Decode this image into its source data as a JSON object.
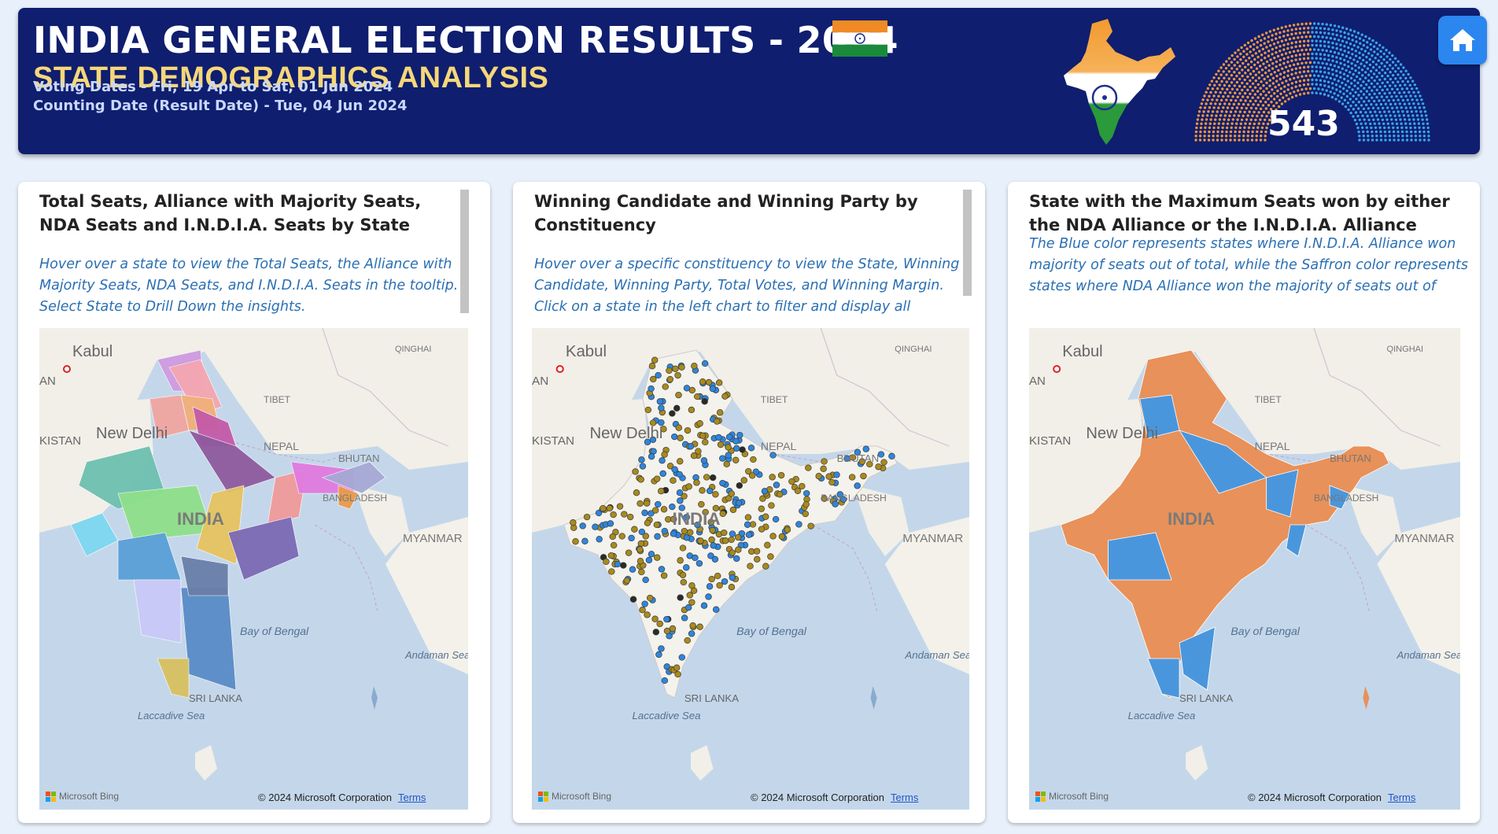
{
  "header": {
    "title": "INDIA GENERAL ELECTION RESULTS - 2024",
    "subtitle": "STATE DEMOGRAPHICS ANALYSIS",
    "voting_dates": "Voting Dates - Fri, 19 Apr to Sat, 01 Jun 2024",
    "counting_date": "Counting Date (Result Date) - Tue, 04 Jun 2024",
    "total_seats": "543",
    "home_icon": "home-icon"
  },
  "colors": {
    "header_bg": "#0f1e6e",
    "subtitle": "#f6d77a",
    "nda_saffron": "#e8915a",
    "india_blue": "#4a96dd",
    "desc_text": "#2a6fb3"
  },
  "cards": [
    {
      "title": "Total Seats, Alliance with Majority Seats, NDA Seats and I.N.D.I.A. Seats by State",
      "description": "Hover over a state to view the Total Seats, the Alliance with Majority Seats, NDA Seats, and I.N.D.I.A. Seats in the tooltip. Select State to Drill Down the insights."
    },
    {
      "title": "Winning Candidate and Winning Party by Constituency",
      "description": "Hover over a specific constituency to view the State, Winning Candidate, Winning Party, Total Votes, and Winning Margin. Click on a state in the left chart to filter and display all constituency"
    },
    {
      "title": "State with the Maximum Seats won by either the NDA Alliance or the I.N.D.I.A. Alliance",
      "description": "The Blue color represents states where I.N.D.I.A. Alliance won majority of seats out of total, while the Saffron color represents states where NDA Alliance won the majority of seats out of total."
    }
  ],
  "map_labels": {
    "kabul": "Kabul",
    "qinghai": "QINGHAI",
    "tibet": "TIBET",
    "nepal": "NEPAL",
    "bhutan": "BHUTAN",
    "bangladesh": "BANGLADESH",
    "new_delhi": "New Delhi",
    "india": "INDIA",
    "myanmar": "MYANMAR",
    "bay_of_bengal": "Bay of Bengal",
    "andaman_sea": "Andaman Sea",
    "sri_lanka": "SRI LANKA",
    "laccadive_sea": "Laccadive Sea",
    "an": "AN",
    "kistan": "KISTAN"
  },
  "map_footer": {
    "bing": "Microsoft Bing",
    "copyright": "© 2024 Microsoft Corporation",
    "terms": "Terms"
  }
}
